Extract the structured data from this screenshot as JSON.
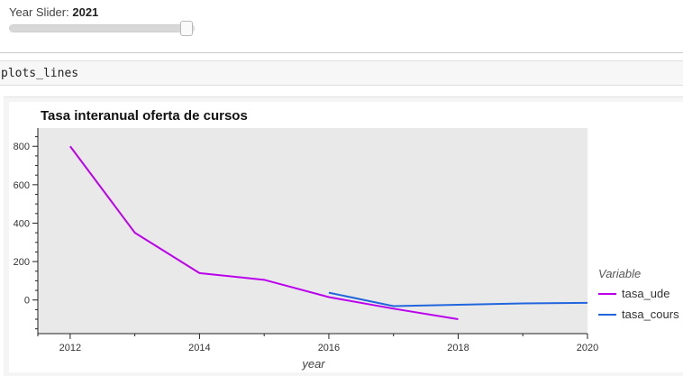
{
  "slider": {
    "label": "Year Slider:",
    "value": "2021",
    "min": 2012,
    "max": 2021,
    "position_fraction": 0.96
  },
  "code_cell": {
    "text": "plots_lines"
  },
  "chart_data": {
    "type": "line",
    "title": "Tasa interanual oferta de cursos",
    "xlabel": "year",
    "ylabel": "",
    "xlim": [
      2011.5,
      2020
    ],
    "ylim": [
      -175,
      895
    ],
    "x_ticks": [
      2012,
      2014,
      2016,
      2018,
      2020
    ],
    "y_ticks": [
      0,
      200,
      400,
      600,
      800
    ],
    "grid": false,
    "legend_title": "Variable",
    "legend_position": "right",
    "series": [
      {
        "name": "tasa_ude",
        "color": "#bb00ee",
        "x": [
          2012,
          2013,
          2014,
          2015,
          2016,
          2017,
          2018
        ],
        "y": [
          800,
          350,
          140,
          105,
          15,
          -45,
          -100
        ]
      },
      {
        "name": "tasa_cours",
        "color": "#2266dd",
        "x": [
          2016,
          2017,
          2018,
          2019,
          2020
        ],
        "y": [
          38,
          -32,
          -25,
          -18,
          -15
        ]
      }
    ]
  }
}
